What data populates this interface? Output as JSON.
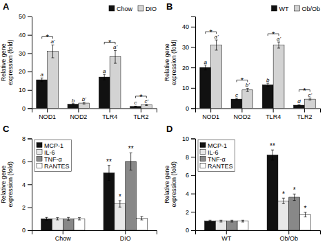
{
  "chart_data": [
    {
      "type": "bar",
      "title": "A",
      "categories": [
        "NOD1",
        "NOD2",
        "TLR4",
        "TLR2"
      ],
      "series": [
        {
          "name": "Chow",
          "color": "#111111",
          "values": [
            15.5,
            2.2,
            17.0,
            1.0
          ],
          "errors": [
            1.0,
            0.3,
            1.5,
            0.15
          ],
          "letters": [
            "a",
            "b",
            "a",
            "c"
          ]
        },
        {
          "name": "DIO",
          "color": "#d3d3d3",
          "values": [
            31.0,
            2.8,
            28.0,
            1.8
          ],
          "errors": [
            3.5,
            0.5,
            3.5,
            0.3
          ],
          "letters": [
            "a'",
            "b'",
            "a'",
            "c'"
          ]
        }
      ],
      "annotations": [
        {
          "category": "NOD1",
          "text": "*"
        },
        {
          "category": "TLR4",
          "text": "*"
        },
        {
          "category": "TLR2",
          "text": "*"
        }
      ],
      "ylim": [
        0,
        50
      ],
      "yticks": [
        0,
        10,
        20,
        30,
        40,
        50
      ],
      "ylabel": "Relative gene\nexpression (fold)",
      "legend": "upper right"
    },
    {
      "type": "bar",
      "title": "B",
      "categories": [
        "NOD1",
        "NOD2",
        "TLR4",
        "TLR2"
      ],
      "series": [
        {
          "name": "WT",
          "color": "#111111",
          "values": [
            20.0,
            4.5,
            11.5,
            1.5
          ],
          "errors": [
            1.2,
            0.4,
            0.8,
            0.2
          ],
          "letters": [
            "a",
            "c",
            "b",
            "d"
          ]
        },
        {
          "name": "Ob/Ob",
          "color": "#d3d3d3",
          "values": [
            31.0,
            9.0,
            31.0,
            4.5
          ],
          "errors": [
            2.5,
            0.8,
            1.5,
            0.5
          ],
          "letters": [
            "a'",
            "b'",
            "a'",
            "c'"
          ]
        }
      ],
      "annotations": [
        {
          "category": "NOD1",
          "text": "*"
        },
        {
          "category": "NOD2",
          "text": "*"
        },
        {
          "category": "TLR4",
          "text": "*"
        },
        {
          "category": "TLR2",
          "text": "*"
        }
      ],
      "ylim": [
        0,
        45
      ],
      "yticks": [
        0,
        10,
        20,
        30,
        40
      ],
      "ylabel": "Relative gene\nexpression (fold)",
      "legend": "upper right"
    },
    {
      "type": "bar",
      "title": "C",
      "categories": [
        "Chow",
        "DIO"
      ],
      "series": [
        {
          "name": "MCP-1",
          "color": "#111111",
          "values": [
            1.0,
            5.0
          ],
          "errors": [
            0.12,
            0.65
          ]
        },
        {
          "name": "IL-6",
          "color": "#e8e8e8",
          "values": [
            1.0,
            2.3
          ],
          "errors": [
            0.1,
            0.28
          ]
        },
        {
          "name": "TNF-α",
          "color": "#888888",
          "values": [
            1.0,
            6.0
          ],
          "errors": [
            0.12,
            0.75
          ]
        },
        {
          "name": "RANTES",
          "color": "#ffffff",
          "values": [
            1.0,
            1.05
          ],
          "errors": [
            0.1,
            0.15
          ]
        }
      ],
      "annotations": [
        {
          "category": "DIO",
          "series": "MCP-1",
          "text": "**"
        },
        {
          "category": "DIO",
          "series": "IL-6",
          "text": "*"
        },
        {
          "category": "DIO",
          "series": "TNF-α",
          "text": "**"
        }
      ],
      "ylim": [
        0,
        8
      ],
      "yticks": [
        0,
        2,
        4,
        6,
        8
      ],
      "ylabel": "Relative gene\nexpression (fold)",
      "legend": "upper left"
    },
    {
      "type": "bar",
      "title": "D",
      "categories": [
        "WT",
        "Ob/Ob"
      ],
      "series": [
        {
          "name": "MCP-1",
          "color": "#111111",
          "values": [
            1.0,
            8.2
          ],
          "errors": [
            0.1,
            0.55
          ]
        },
        {
          "name": "IL-6",
          "color": "#e8e8e8",
          "values": [
            1.0,
            3.2
          ],
          "errors": [
            0.1,
            0.3
          ]
        },
        {
          "name": "TNF-α",
          "color": "#888888",
          "values": [
            1.0,
            3.6
          ],
          "errors": [
            0.1,
            0.35
          ]
        },
        {
          "name": "RANTES",
          "color": "#ffffff",
          "values": [
            1.0,
            1.7
          ],
          "errors": [
            0.1,
            0.25
          ]
        }
      ],
      "annotations": [
        {
          "category": "Ob/Ob",
          "series": "MCP-1",
          "text": "**"
        },
        {
          "category": "Ob/Ob",
          "series": "IL-6",
          "text": "*"
        },
        {
          "category": "Ob/Ob",
          "series": "TNF-α",
          "text": "*"
        },
        {
          "category": "Ob/Ob",
          "series": "RANTES",
          "text": "*"
        }
      ],
      "ylim": [
        0,
        10
      ],
      "yticks": [
        0,
        2,
        4,
        6,
        8,
        10
      ],
      "ylabel": "Relative gene\nexpression (fold)",
      "legend": "upper left"
    }
  ]
}
